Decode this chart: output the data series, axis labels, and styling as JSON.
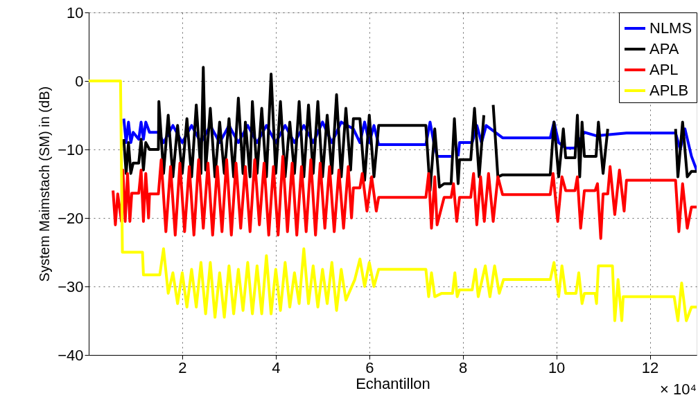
{
  "chart_data": {
    "type": "line",
    "xlabel": "Echantillon",
    "ylabel": "System Maimstach (SM) in (dB)",
    "xlim": [
      0,
      13
    ],
    "xticks": [
      2,
      4,
      6,
      8,
      10,
      12
    ],
    "ylim": [
      -40,
      10
    ],
    "yticks": [
      -40,
      -30,
      -20,
      -10,
      0,
      10
    ],
    "grid": true,
    "legend": "top right",
    "line_style": "solid",
    "annotations": [
      "× 10⁴"
    ],
    "series": [
      {
        "name": "NLMS",
        "color": "#0000ff",
        "x": [
          0.75,
          0.8,
          0.85,
          0.9,
          0.95,
          1.07,
          1.12,
          1.17,
          1.22,
          1.3,
          1.49,
          1.6,
          1.8,
          2.0,
          2.2,
          2.4,
          2.6,
          2.8,
          3.0,
          3.2,
          3.4,
          3.6,
          3.8,
          4.0,
          4.2,
          4.4,
          4.6,
          4.8,
          5.0,
          5.2,
          5.4,
          5.66,
          5.8,
          5.9,
          6.0,
          6.1,
          6.2,
          7.21,
          7.3,
          7.38,
          7.45,
          7.75,
          7.82,
          7.9,
          7.93,
          8.2,
          8.3,
          8.4,
          8.5,
          8.85,
          9.87,
          9.95,
          10.05,
          10.2,
          10.4,
          10.6,
          10.85,
          11.5,
          12.55,
          12.65,
          12.75,
          12.89,
          13.0
        ],
        "values": [
          -5.5,
          -9,
          -6,
          -9,
          -7.5,
          -8.5,
          -6,
          -8.5,
          -6,
          -7.5,
          -7.5,
          -9,
          -6.5,
          -9,
          -6.5,
          -9,
          -6.5,
          -9,
          -6.5,
          -9,
          -6.5,
          -9,
          -6.5,
          -9,
          -6.5,
          -9,
          -6.5,
          -9,
          -6,
          -9,
          -6,
          -7,
          -9,
          -6,
          -9,
          -6.5,
          -9.3,
          -9.3,
          -6,
          -9,
          -11,
          -11,
          null,
          -11,
          -9,
          -9,
          -6.5,
          -9,
          -6.5,
          -8.3,
          -8.3,
          -6,
          -9,
          -9.8,
          -9.8,
          -7.5,
          -8,
          -7.6,
          -7.6,
          -10,
          -7,
          -11,
          -13
        ]
      },
      {
        "name": "APA",
        "color": "#000000",
        "x": [
          0.75,
          0.8,
          0.85,
          0.9,
          0.95,
          1.07,
          1.12,
          1.17,
          1.22,
          1.3,
          1.49,
          1.5,
          1.6,
          1.7,
          1.8,
          1.9,
          2.0,
          2.1,
          2.2,
          2.3,
          2.4,
          2.45,
          2.5,
          2.6,
          2.7,
          2.8,
          2.9,
          3.0,
          3.1,
          3.2,
          3.3,
          3.35,
          3.45,
          3.5,
          3.6,
          3.7,
          3.8,
          3.9,
          4.0,
          4.1,
          4.2,
          4.3,
          4.4,
          4.5,
          4.6,
          4.7,
          4.8,
          4.9,
          5.0,
          5.1,
          5.2,
          5.3,
          5.4,
          5.5,
          5.6,
          5.66,
          5.8,
          5.9,
          6.0,
          6.1,
          6.2,
          7.21,
          7.3,
          7.4,
          7.5,
          7.6,
          7.75,
          7.82,
          7.9,
          7.93,
          8.17,
          8.25,
          8.35,
          8.45,
          8.55,
          8.65,
          8.75,
          8.85,
          9.87,
          9.95,
          10.05,
          10.15,
          10.2,
          10.4,
          10.45,
          10.5,
          10.55,
          10.6,
          10.85,
          10.9,
          11.0,
          11.1,
          11.5,
          12.55,
          12.6,
          12.7,
          12.8,
          12.89,
          13.0
        ],
        "values": [
          -8.5,
          -13.5,
          -9,
          -13.5,
          -12,
          -12,
          -8.5,
          -13,
          -9,
          -10,
          -10,
          -3,
          -13.5,
          -5,
          -14,
          -6.5,
          -13.5,
          -5.5,
          -14,
          -3.5,
          -13.5,
          2,
          -13,
          -4,
          -14,
          -6,
          -13.5,
          -5.5,
          -14,
          -2.5,
          -13.5,
          -6,
          -14,
          -3,
          -13.5,
          -4,
          -14,
          1,
          -13.5,
          -3,
          -14,
          -6,
          -13.5,
          -3,
          -14,
          -3.5,
          -13.5,
          -3,
          -14,
          -5,
          -13.5,
          -2,
          -14,
          -4,
          -13,
          -5.5,
          -5.5,
          -14.5,
          -5,
          -14,
          -6.5,
          -6.5,
          -16,
          -7,
          -15.5,
          -15,
          -15,
          -5.5,
          -15,
          -11.5,
          -11.5,
          -4,
          -14,
          -5,
          null,
          -3.5,
          -14,
          -13.7,
          -13.7,
          -6,
          -14,
          -7,
          -11.2,
          -11.2,
          -5,
          -14,
          -6,
          -11,
          -11,
          -6,
          -13.5,
          -7,
          null,
          -7,
          -14,
          -6,
          -14,
          -13.2,
          -13.2
        ]
      },
      {
        "name": "APL",
        "color": "#ff0000",
        "x": [
          0.52,
          0.57,
          0.62,
          0.7,
          0.73,
          0.78,
          0.83,
          0.88,
          0.92,
          1.07,
          1.12,
          1.17,
          1.22,
          1.28,
          1.3,
          1.49,
          1.55,
          1.65,
          1.75,
          1.85,
          1.95,
          2.05,
          2.15,
          2.25,
          2.35,
          2.45,
          2.55,
          2.65,
          2.75,
          2.85,
          2.95,
          3.05,
          3.15,
          3.25,
          3.35,
          3.45,
          3.55,
          3.65,
          3.75,
          3.85,
          3.95,
          4.05,
          4.15,
          4.25,
          4.35,
          4.45,
          4.55,
          4.65,
          4.75,
          4.85,
          4.95,
          5.05,
          5.15,
          5.25,
          5.35,
          5.45,
          5.55,
          5.62,
          5.66,
          5.8,
          5.85,
          5.95,
          6.05,
          6.15,
          6.2,
          7.21,
          7.27,
          7.33,
          7.4,
          7.45,
          7.6,
          7.75,
          7.8,
          7.87,
          7.93,
          8.17,
          8.23,
          8.3,
          8.38,
          8.46,
          8.55,
          8.65,
          8.75,
          8.85,
          9.87,
          9.93,
          10.03,
          10.12,
          10.2,
          10.4,
          10.45,
          10.52,
          10.6,
          10.83,
          10.88,
          10.95,
          11.0,
          11.1,
          11.15,
          11.25,
          11.35,
          11.45,
          11.5,
          12.55,
          12.62,
          12.7,
          12.8,
          12.89,
          13.0
        ],
        "values": [
          -16,
          -21,
          -16.5,
          -20.5,
          -13,
          -20.5,
          -13.5,
          -20.5,
          -16.4,
          -16.4,
          -13,
          -20.5,
          -13.5,
          -20,
          -16.5,
          -16.5,
          -11.5,
          -22,
          -12.5,
          -22.5,
          -12,
          -22,
          -12.5,
          -22.5,
          -11.5,
          -21.5,
          -12,
          -22.5,
          -12.5,
          -22,
          -11.5,
          -22.5,
          -12,
          -21.5,
          -12.5,
          -22,
          -11.5,
          -21,
          -12,
          -22.5,
          -12.5,
          -22.5,
          -11,
          -22,
          -12,
          -22.5,
          -12.5,
          -22,
          -11.5,
          -22.5,
          -12,
          -21.5,
          -12.5,
          -22,
          -13,
          -21.5,
          -12.5,
          -20,
          -15.6,
          -15.6,
          -13.5,
          -19,
          -14,
          -19,
          -17,
          -17,
          -13.5,
          -21.5,
          -14,
          -21,
          -17,
          -17,
          -15,
          -20.5,
          -17,
          -17,
          -13.5,
          -21,
          -14,
          -20.5,
          -13.5,
          -20.5,
          -14,
          -16.6,
          -16.6,
          -13.5,
          -20.5,
          -14,
          -16,
          -16,
          -14,
          -21.5,
          -16,
          -16,
          -15,
          -23,
          -16.5,
          -16.5,
          -12.5,
          -19.5,
          -13,
          -19,
          -14.5,
          -14.5,
          -22,
          -15,
          -21.5,
          -18.4,
          -18.4
        ]
      },
      {
        "name": "APLB",
        "color": "#ffff00",
        "x": [
          0,
          0.68,
          0.72,
          1.15,
          1.17,
          1.52,
          1.6,
          1.7,
          1.8,
          1.9,
          2.0,
          2.1,
          2.2,
          2.3,
          2.4,
          2.5,
          2.6,
          2.7,
          2.8,
          2.9,
          3.0,
          3.1,
          3.2,
          3.3,
          3.4,
          3.5,
          3.6,
          3.7,
          3.8,
          3.9,
          4.0,
          4.1,
          4.2,
          4.3,
          4.4,
          4.5,
          4.6,
          4.7,
          4.8,
          4.9,
          5.0,
          5.1,
          5.2,
          5.3,
          5.4,
          5.5,
          5.69,
          5.8,
          5.9,
          6.0,
          6.1,
          6.2,
          7.21,
          7.27,
          7.33,
          7.4,
          7.55,
          7.78,
          7.83,
          7.88,
          7.93,
          8.2,
          8.27,
          8.33,
          8.48,
          8.58,
          8.68,
          8.78,
          8.87,
          9.87,
          9.95,
          10.05,
          10.12,
          10.2,
          10.42,
          10.48,
          10.55,
          10.6,
          10.83,
          10.86,
          10.9,
          11.2,
          11.25,
          11.32,
          11.4,
          11.43,
          12.52,
          12.6,
          12.68,
          12.78,
          12.89,
          13.0
        ],
        "values": [
          0,
          0,
          -25,
          -25,
          -28.3,
          -28.3,
          -24.5,
          -31,
          -28,
          -32.5,
          -28,
          -33,
          -27.5,
          -33,
          -26.5,
          -34,
          -26.5,
          -34.5,
          -28,
          -34.5,
          -27,
          -34,
          -27.5,
          -33.5,
          -26.5,
          -34,
          -27,
          -34,
          -25.5,
          -34,
          -27.5,
          -33.5,
          -26.5,
          -33,
          -28,
          -32.5,
          -24.5,
          -32.5,
          -27,
          -33,
          -27.5,
          -32.5,
          -26.5,
          -33.5,
          -27.5,
          -32,
          -29,
          -26,
          -30,
          -26.5,
          -30,
          -27.5,
          -27.5,
          -31.5,
          -28,
          -31.5,
          -31,
          -31,
          -28,
          -31.5,
          -30.5,
          -30.5,
          -27.5,
          -31.5,
          -27,
          -31.5,
          -27,
          -31,
          -29,
          -29,
          -26.5,
          -31.5,
          -27,
          -31,
          -31,
          -28,
          -32.5,
          -31,
          -31,
          -32.5,
          -27,
          -27,
          -35,
          -29,
          -35,
          -31.5,
          -31.5,
          -35,
          -29.5,
          -35,
          -33,
          -33
        ]
      }
    ]
  }
}
